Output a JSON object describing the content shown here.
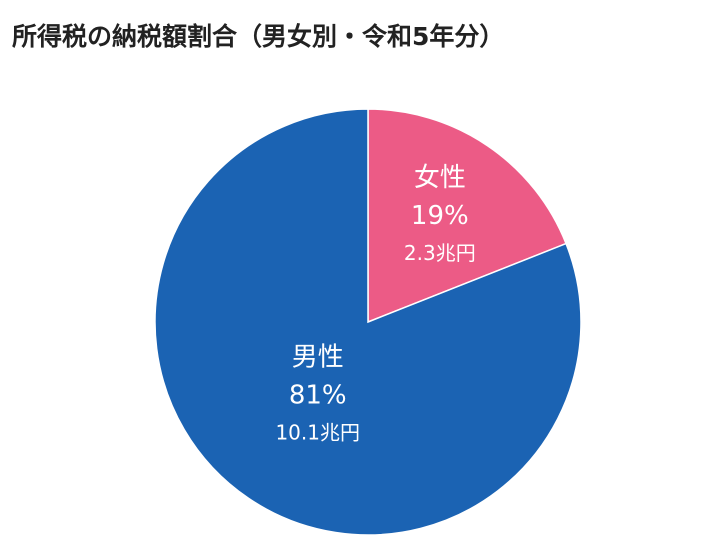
{
  "chart_data": {
    "type": "pie",
    "title": "所得税の納税額割合（男女別・令和5年分）",
    "categories": [
      "女性",
      "男性"
    ],
    "values": [
      19,
      81
    ],
    "value_labels": [
      "19%",
      "81%"
    ],
    "amounts": [
      2.3,
      10.1
    ],
    "amount_labels": [
      "2.3兆円",
      "10.1兆円"
    ],
    "colors": [
      "#ec5b86",
      "#1b63b3"
    ]
  }
}
